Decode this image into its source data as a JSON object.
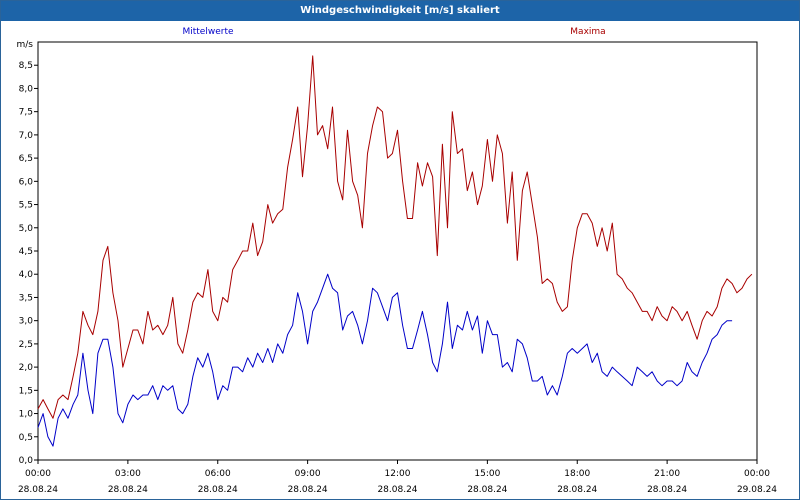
{
  "chart_data": {
    "type": "line",
    "title": "Windgeschwindigkeit [m/s] skaliert",
    "unit_label": "m/s",
    "ylim": [
      0,
      9
    ],
    "y_ticks": [
      "0,0",
      "0,5",
      "1,0",
      "1,5",
      "2,0",
      "2,5",
      "3,0",
      "3,5",
      "4,0",
      "4,5",
      "5,0",
      "5,5",
      "6,0",
      "6,5",
      "7,0",
      "7,5",
      "8,0",
      "8,5"
    ],
    "x_ticks": [
      {
        "time": "00:00",
        "date": "28.08.24"
      },
      {
        "time": "03:00",
        "date": "28.08.24"
      },
      {
        "time": "06:00",
        "date": "28.08.24"
      },
      {
        "time": "09:00",
        "date": "28.08.24"
      },
      {
        "time": "12:00",
        "date": "28.08.24"
      },
      {
        "time": "15:00",
        "date": "28.08.24"
      },
      {
        "time": "18:00",
        "date": "28.08.24"
      },
      {
        "time": "21:00",
        "date": "28.08.24"
      },
      {
        "time": "00:00",
        "date": "29.08.24"
      }
    ],
    "x_range_hours": [
      0,
      24
    ],
    "grid": true,
    "series": [
      {
        "name": "Mittelwerte",
        "color": "#0000c8",
        "points": [
          [
            0.0,
            0.7
          ],
          [
            0.17,
            1.0
          ],
          [
            0.33,
            0.5
          ],
          [
            0.5,
            0.3
          ],
          [
            0.67,
            0.9
          ],
          [
            0.83,
            1.1
          ],
          [
            1.0,
            0.9
          ],
          [
            1.17,
            1.2
          ],
          [
            1.33,
            1.4
          ],
          [
            1.5,
            2.3
          ],
          [
            1.67,
            1.5
          ],
          [
            1.83,
            1.0
          ],
          [
            2.0,
            2.3
          ],
          [
            2.17,
            2.6
          ],
          [
            2.33,
            2.6
          ],
          [
            2.5,
            2.0
          ],
          [
            2.67,
            1.0
          ],
          [
            2.83,
            0.8
          ],
          [
            3.0,
            1.2
          ],
          [
            3.17,
            1.4
          ],
          [
            3.33,
            1.3
          ],
          [
            3.5,
            1.4
          ],
          [
            3.67,
            1.4
          ],
          [
            3.83,
            1.6
          ],
          [
            4.0,
            1.3
          ],
          [
            4.17,
            1.6
          ],
          [
            4.33,
            1.5
          ],
          [
            4.5,
            1.6
          ],
          [
            4.67,
            1.1
          ],
          [
            4.83,
            1.0
          ],
          [
            5.0,
            1.2
          ],
          [
            5.17,
            1.8
          ],
          [
            5.33,
            2.2
          ],
          [
            5.5,
            2.0
          ],
          [
            5.67,
            2.3
          ],
          [
            5.83,
            1.9
          ],
          [
            6.0,
            1.3
          ],
          [
            6.17,
            1.6
          ],
          [
            6.33,
            1.5
          ],
          [
            6.5,
            2.0
          ],
          [
            6.67,
            2.0
          ],
          [
            6.83,
            1.9
          ],
          [
            7.0,
            2.2
          ],
          [
            7.17,
            2.0
          ],
          [
            7.33,
            2.3
          ],
          [
            7.5,
            2.1
          ],
          [
            7.67,
            2.4
          ],
          [
            7.83,
            2.1
          ],
          [
            8.0,
            2.5
          ],
          [
            8.17,
            2.3
          ],
          [
            8.33,
            2.7
          ],
          [
            8.5,
            2.9
          ],
          [
            8.67,
            3.6
          ],
          [
            8.83,
            3.2
          ],
          [
            9.0,
            2.5
          ],
          [
            9.17,
            3.2
          ],
          [
            9.33,
            3.4
          ],
          [
            9.5,
            3.7
          ],
          [
            9.67,
            4.0
          ],
          [
            9.83,
            3.7
          ],
          [
            10.0,
            3.6
          ],
          [
            10.17,
            2.8
          ],
          [
            10.33,
            3.1
          ],
          [
            10.5,
            3.2
          ],
          [
            10.67,
            2.9
          ],
          [
            10.83,
            2.5
          ],
          [
            11.0,
            3.0
          ],
          [
            11.17,
            3.7
          ],
          [
            11.33,
            3.6
          ],
          [
            11.5,
            3.3
          ],
          [
            11.67,
            3.0
          ],
          [
            11.83,
            3.5
          ],
          [
            12.0,
            3.6
          ],
          [
            12.17,
            2.9
          ],
          [
            12.33,
            2.4
          ],
          [
            12.5,
            2.4
          ],
          [
            12.67,
            2.8
          ],
          [
            12.83,
            3.2
          ],
          [
            13.0,
            2.7
          ],
          [
            13.17,
            2.1
          ],
          [
            13.33,
            1.9
          ],
          [
            13.5,
            2.5
          ],
          [
            13.67,
            3.4
          ],
          [
            13.83,
            2.4
          ],
          [
            14.0,
            2.9
          ],
          [
            14.17,
            2.8
          ],
          [
            14.33,
            3.2
          ],
          [
            14.5,
            2.8
          ],
          [
            14.67,
            3.1
          ],
          [
            14.83,
            2.3
          ],
          [
            15.0,
            3.0
          ],
          [
            15.17,
            2.7
          ],
          [
            15.33,
            2.7
          ],
          [
            15.5,
            2.0
          ],
          [
            15.67,
            2.1
          ],
          [
            15.83,
            1.9
          ],
          [
            16.0,
            2.6
          ],
          [
            16.17,
            2.5
          ],
          [
            16.33,
            2.2
          ],
          [
            16.5,
            1.7
          ],
          [
            16.67,
            1.7
          ],
          [
            16.83,
            1.8
          ],
          [
            17.0,
            1.4
          ],
          [
            17.17,
            1.6
          ],
          [
            17.33,
            1.4
          ],
          [
            17.5,
            1.8
          ],
          [
            17.67,
            2.3
          ],
          [
            17.83,
            2.4
          ],
          [
            18.0,
            2.3
          ],
          [
            18.17,
            2.4
          ],
          [
            18.33,
            2.5
          ],
          [
            18.5,
            2.1
          ],
          [
            18.67,
            2.3
          ],
          [
            18.83,
            1.9
          ],
          [
            19.0,
            1.8
          ],
          [
            19.17,
            2.0
          ],
          [
            19.33,
            1.9
          ],
          [
            19.5,
            1.8
          ],
          [
            19.67,
            1.7
          ],
          [
            19.83,
            1.6
          ],
          [
            20.0,
            2.0
          ],
          [
            20.17,
            1.9
          ],
          [
            20.33,
            1.8
          ],
          [
            20.5,
            1.9
          ],
          [
            20.67,
            1.7
          ],
          [
            20.83,
            1.6
          ],
          [
            21.0,
            1.7
          ],
          [
            21.17,
            1.7
          ],
          [
            21.33,
            1.6
          ],
          [
            21.5,
            1.7
          ],
          [
            21.67,
            2.1
          ],
          [
            21.83,
            1.9
          ],
          [
            22.0,
            1.8
          ],
          [
            22.17,
            2.1
          ],
          [
            22.33,
            2.3
          ],
          [
            22.5,
            2.6
          ],
          [
            22.67,
            2.7
          ],
          [
            22.83,
            2.9
          ],
          [
            23.0,
            3.0
          ],
          [
            23.17,
            3.0
          ]
        ]
      },
      {
        "name": "Maxima",
        "color": "#a80000",
        "points": [
          [
            0.0,
            1.1
          ],
          [
            0.17,
            1.3
          ],
          [
            0.33,
            1.1
          ],
          [
            0.5,
            0.9
          ],
          [
            0.67,
            1.3
          ],
          [
            0.83,
            1.4
          ],
          [
            1.0,
            1.3
          ],
          [
            1.17,
            1.8
          ],
          [
            1.33,
            2.3
          ],
          [
            1.5,
            3.2
          ],
          [
            1.67,
            2.9
          ],
          [
            1.83,
            2.7
          ],
          [
            2.0,
            3.2
          ],
          [
            2.17,
            4.3
          ],
          [
            2.33,
            4.6
          ],
          [
            2.5,
            3.6
          ],
          [
            2.67,
            3.0
          ],
          [
            2.83,
            2.0
          ],
          [
            3.0,
            2.4
          ],
          [
            3.17,
            2.8
          ],
          [
            3.33,
            2.8
          ],
          [
            3.5,
            2.5
          ],
          [
            3.67,
            3.2
          ],
          [
            3.83,
            2.8
          ],
          [
            4.0,
            2.9
          ],
          [
            4.17,
            2.7
          ],
          [
            4.33,
            2.9
          ],
          [
            4.5,
            3.5
          ],
          [
            4.67,
            2.5
          ],
          [
            4.83,
            2.3
          ],
          [
            5.0,
            2.8
          ],
          [
            5.17,
            3.4
          ],
          [
            5.33,
            3.6
          ],
          [
            5.5,
            3.5
          ],
          [
            5.67,
            4.1
          ],
          [
            5.83,
            3.2
          ],
          [
            6.0,
            3.0
          ],
          [
            6.17,
            3.5
          ],
          [
            6.33,
            3.4
          ],
          [
            6.5,
            4.1
          ],
          [
            6.67,
            4.3
          ],
          [
            6.83,
            4.5
          ],
          [
            7.0,
            4.5
          ],
          [
            7.17,
            5.1
          ],
          [
            7.33,
            4.4
          ],
          [
            7.5,
            4.7
          ],
          [
            7.67,
            5.5
          ],
          [
            7.83,
            5.1
          ],
          [
            8.0,
            5.3
          ],
          [
            8.17,
            5.4
          ],
          [
            8.33,
            6.3
          ],
          [
            8.5,
            6.9
          ],
          [
            8.67,
            7.6
          ],
          [
            8.83,
            6.1
          ],
          [
            9.0,
            7.2
          ],
          [
            9.17,
            8.7
          ],
          [
            9.33,
            7.0
          ],
          [
            9.5,
            7.2
          ],
          [
            9.67,
            6.7
          ],
          [
            9.83,
            7.6
          ],
          [
            10.0,
            6.0
          ],
          [
            10.17,
            5.6
          ],
          [
            10.33,
            7.1
          ],
          [
            10.5,
            6.0
          ],
          [
            10.67,
            5.7
          ],
          [
            10.83,
            5.0
          ],
          [
            11.0,
            6.6
          ],
          [
            11.17,
            7.2
          ],
          [
            11.33,
            7.6
          ],
          [
            11.5,
            7.5
          ],
          [
            11.67,
            6.5
          ],
          [
            11.83,
            6.6
          ],
          [
            12.0,
            7.1
          ],
          [
            12.17,
            6.0
          ],
          [
            12.33,
            5.2
          ],
          [
            12.5,
            5.2
          ],
          [
            12.67,
            6.4
          ],
          [
            12.83,
            5.9
          ],
          [
            13.0,
            6.4
          ],
          [
            13.17,
            6.1
          ],
          [
            13.33,
            4.4
          ],
          [
            13.5,
            6.8
          ],
          [
            13.67,
            5.0
          ],
          [
            13.83,
            7.5
          ],
          [
            14.0,
            6.6
          ],
          [
            14.17,
            6.7
          ],
          [
            14.33,
            5.8
          ],
          [
            14.5,
            6.2
          ],
          [
            14.67,
            5.5
          ],
          [
            14.83,
            5.9
          ],
          [
            15.0,
            6.9
          ],
          [
            15.17,
            6.0
          ],
          [
            15.33,
            7.0
          ],
          [
            15.5,
            6.6
          ],
          [
            15.67,
            5.1
          ],
          [
            15.83,
            6.2
          ],
          [
            16.0,
            4.3
          ],
          [
            16.17,
            5.8
          ],
          [
            16.33,
            6.2
          ],
          [
            16.5,
            5.5
          ],
          [
            16.67,
            4.8
          ],
          [
            16.83,
            3.8
          ],
          [
            17.0,
            3.9
          ],
          [
            17.17,
            3.8
          ],
          [
            17.33,
            3.4
          ],
          [
            17.5,
            3.2
          ],
          [
            17.67,
            3.3
          ],
          [
            17.83,
            4.3
          ],
          [
            18.0,
            5.0
          ],
          [
            18.17,
            5.3
          ],
          [
            18.33,
            5.3
          ],
          [
            18.5,
            5.1
          ],
          [
            18.67,
            4.6
          ],
          [
            18.83,
            5.0
          ],
          [
            19.0,
            4.5
          ],
          [
            19.17,
            5.1
          ],
          [
            19.33,
            4.0
          ],
          [
            19.5,
            3.9
          ],
          [
            19.67,
            3.7
          ],
          [
            19.83,
            3.6
          ],
          [
            20.0,
            3.4
          ],
          [
            20.17,
            3.2
          ],
          [
            20.33,
            3.2
          ],
          [
            20.5,
            3.0
          ],
          [
            20.67,
            3.3
          ],
          [
            20.83,
            3.1
          ],
          [
            21.0,
            3.0
          ],
          [
            21.17,
            3.3
          ],
          [
            21.33,
            3.2
          ],
          [
            21.5,
            3.0
          ],
          [
            21.67,
            3.2
          ],
          [
            21.83,
            2.9
          ],
          [
            22.0,
            2.6
          ],
          [
            22.17,
            3.0
          ],
          [
            22.33,
            3.2
          ],
          [
            22.5,
            3.1
          ],
          [
            22.67,
            3.3
          ],
          [
            22.83,
            3.7
          ],
          [
            23.0,
            3.9
          ],
          [
            23.17,
            3.8
          ],
          [
            23.33,
            3.6
          ],
          [
            23.5,
            3.7
          ],
          [
            23.67,
            3.9
          ],
          [
            23.83,
            4.0
          ]
        ]
      }
    ]
  }
}
